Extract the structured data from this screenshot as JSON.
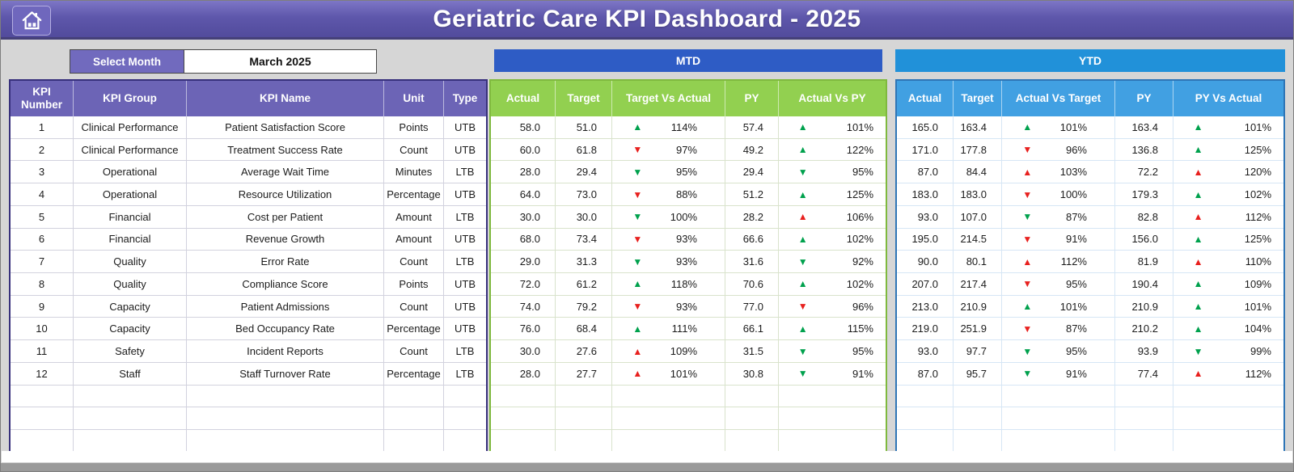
{
  "titlebar": {
    "title": "Geriatric Care KPI Dashboard - 2025"
  },
  "filter": {
    "label": "Select Month",
    "value": "March 2025"
  },
  "sections": {
    "mtd_label": "MTD",
    "ytd_label": "YTD"
  },
  "table": {
    "info_headers": [
      "KPI Number",
      "KPI Group",
      "KPI Name",
      "Unit",
      "Type"
    ],
    "mtd_headers": [
      "Actual",
      "Target",
      "Target Vs Actual",
      "PY",
      "Actual Vs PY"
    ],
    "ytd_headers": [
      "Actual",
      "Target",
      "Actual Vs Target",
      "PY",
      "PY Vs Actual"
    ],
    "empty_rows": 3,
    "rows": [
      {
        "num": "1",
        "group": "Clinical Performance",
        "name": "Patient Satisfaction Score",
        "unit": "Points",
        "type": "UTB",
        "mtd": {
          "actual": "58.0",
          "target": "51.0",
          "tva": {
            "dir": "up",
            "state": "good",
            "pct": "114%"
          },
          "py": "57.4",
          "avp": {
            "dir": "up",
            "state": "good",
            "pct": "101%"
          }
        },
        "ytd": {
          "actual": "165.0",
          "target": "163.4",
          "avt": {
            "dir": "up",
            "state": "good",
            "pct": "101%"
          },
          "py": "163.4",
          "pva": {
            "dir": "up",
            "state": "good",
            "pct": "101%"
          }
        }
      },
      {
        "num": "2",
        "group": "Clinical Performance",
        "name": "Treatment Success Rate",
        "unit": "Count",
        "type": "UTB",
        "mtd": {
          "actual": "60.0",
          "target": "61.8",
          "tva": {
            "dir": "down",
            "state": "bad",
            "pct": "97%"
          },
          "py": "49.2",
          "avp": {
            "dir": "up",
            "state": "good",
            "pct": "122%"
          }
        },
        "ytd": {
          "actual": "171.0",
          "target": "177.8",
          "avt": {
            "dir": "down",
            "state": "bad",
            "pct": "96%"
          },
          "py": "136.8",
          "pva": {
            "dir": "up",
            "state": "good",
            "pct": "125%"
          }
        }
      },
      {
        "num": "3",
        "group": "Operational",
        "name": "Average Wait Time",
        "unit": "Minutes",
        "type": "LTB",
        "mtd": {
          "actual": "28.0",
          "target": "29.4",
          "tva": {
            "dir": "down",
            "state": "good",
            "pct": "95%"
          },
          "py": "29.4",
          "avp": {
            "dir": "down",
            "state": "good",
            "pct": "95%"
          }
        },
        "ytd": {
          "actual": "87.0",
          "target": "84.4",
          "avt": {
            "dir": "up",
            "state": "bad",
            "pct": "103%"
          },
          "py": "72.2",
          "pva": {
            "dir": "up",
            "state": "bad",
            "pct": "120%"
          }
        }
      },
      {
        "num": "4",
        "group": "Operational",
        "name": "Resource Utilization",
        "unit": "Percentage",
        "type": "UTB",
        "mtd": {
          "actual": "64.0",
          "target": "73.0",
          "tva": {
            "dir": "down",
            "state": "bad",
            "pct": "88%"
          },
          "py": "51.2",
          "avp": {
            "dir": "up",
            "state": "good",
            "pct": "125%"
          }
        },
        "ytd": {
          "actual": "183.0",
          "target": "183.0",
          "avt": {
            "dir": "down",
            "state": "bad",
            "pct": "100%"
          },
          "py": "179.3",
          "pva": {
            "dir": "up",
            "state": "good",
            "pct": "102%"
          }
        }
      },
      {
        "num": "5",
        "group": "Financial",
        "name": "Cost per Patient",
        "unit": "Amount",
        "type": "LTB",
        "mtd": {
          "actual": "30.0",
          "target": "30.0",
          "tva": {
            "dir": "down",
            "state": "good",
            "pct": "100%"
          },
          "py": "28.2",
          "avp": {
            "dir": "up",
            "state": "bad",
            "pct": "106%"
          }
        },
        "ytd": {
          "actual": "93.0",
          "target": "107.0",
          "avt": {
            "dir": "down",
            "state": "good",
            "pct": "87%"
          },
          "py": "82.8",
          "pva": {
            "dir": "up",
            "state": "bad",
            "pct": "112%"
          }
        }
      },
      {
        "num": "6",
        "group": "Financial",
        "name": "Revenue Growth",
        "unit": "Amount",
        "type": "UTB",
        "mtd": {
          "actual": "68.0",
          "target": "73.4",
          "tva": {
            "dir": "down",
            "state": "bad",
            "pct": "93%"
          },
          "py": "66.6",
          "avp": {
            "dir": "up",
            "state": "good",
            "pct": "102%"
          }
        },
        "ytd": {
          "actual": "195.0",
          "target": "214.5",
          "avt": {
            "dir": "down",
            "state": "bad",
            "pct": "91%"
          },
          "py": "156.0",
          "pva": {
            "dir": "up",
            "state": "good",
            "pct": "125%"
          }
        }
      },
      {
        "num": "7",
        "group": "Quality",
        "name": "Error Rate",
        "unit": "Count",
        "type": "LTB",
        "mtd": {
          "actual": "29.0",
          "target": "31.3",
          "tva": {
            "dir": "down",
            "state": "good",
            "pct": "93%"
          },
          "py": "31.6",
          "avp": {
            "dir": "down",
            "state": "good",
            "pct": "92%"
          }
        },
        "ytd": {
          "actual": "90.0",
          "target": "80.1",
          "avt": {
            "dir": "up",
            "state": "bad",
            "pct": "112%"
          },
          "py": "81.9",
          "pva": {
            "dir": "up",
            "state": "bad",
            "pct": "110%"
          }
        }
      },
      {
        "num": "8",
        "group": "Quality",
        "name": "Compliance Score",
        "unit": "Points",
        "type": "UTB",
        "mtd": {
          "actual": "72.0",
          "target": "61.2",
          "tva": {
            "dir": "up",
            "state": "good",
            "pct": "118%"
          },
          "py": "70.6",
          "avp": {
            "dir": "up",
            "state": "good",
            "pct": "102%"
          }
        },
        "ytd": {
          "actual": "207.0",
          "target": "217.4",
          "avt": {
            "dir": "down",
            "state": "bad",
            "pct": "95%"
          },
          "py": "190.4",
          "pva": {
            "dir": "up",
            "state": "good",
            "pct": "109%"
          }
        }
      },
      {
        "num": "9",
        "group": "Capacity",
        "name": "Patient Admissions",
        "unit": "Count",
        "type": "UTB",
        "mtd": {
          "actual": "74.0",
          "target": "79.2",
          "tva": {
            "dir": "down",
            "state": "bad",
            "pct": "93%"
          },
          "py": "77.0",
          "avp": {
            "dir": "down",
            "state": "bad",
            "pct": "96%"
          }
        },
        "ytd": {
          "actual": "213.0",
          "target": "210.9",
          "avt": {
            "dir": "up",
            "state": "good",
            "pct": "101%"
          },
          "py": "210.9",
          "pva": {
            "dir": "up",
            "state": "good",
            "pct": "101%"
          }
        }
      },
      {
        "num": "10",
        "group": "Capacity",
        "name": "Bed Occupancy Rate",
        "unit": "Percentage",
        "type": "UTB",
        "mtd": {
          "actual": "76.0",
          "target": "68.4",
          "tva": {
            "dir": "up",
            "state": "good",
            "pct": "111%"
          },
          "py": "66.1",
          "avp": {
            "dir": "up",
            "state": "good",
            "pct": "115%"
          }
        },
        "ytd": {
          "actual": "219.0",
          "target": "251.9",
          "avt": {
            "dir": "down",
            "state": "bad",
            "pct": "87%"
          },
          "py": "210.2",
          "pva": {
            "dir": "up",
            "state": "good",
            "pct": "104%"
          }
        }
      },
      {
        "num": "11",
        "group": "Safety",
        "name": "Incident Reports",
        "unit": "Count",
        "type": "LTB",
        "mtd": {
          "actual": "30.0",
          "target": "27.6",
          "tva": {
            "dir": "up",
            "state": "bad",
            "pct": "109%"
          },
          "py": "31.5",
          "avp": {
            "dir": "down",
            "state": "good",
            "pct": "95%"
          }
        },
        "ytd": {
          "actual": "93.0",
          "target": "97.7",
          "avt": {
            "dir": "down",
            "state": "good",
            "pct": "95%"
          },
          "py": "93.9",
          "pva": {
            "dir": "down",
            "state": "good",
            "pct": "99%"
          }
        }
      },
      {
        "num": "12",
        "group": "Staff",
        "name": "Staff Turnover Rate",
        "unit": "Percentage",
        "type": "LTB",
        "mtd": {
          "actual": "28.0",
          "target": "27.7",
          "tva": {
            "dir": "up",
            "state": "bad",
            "pct": "101%"
          },
          "py": "30.8",
          "avp": {
            "dir": "down",
            "state": "good",
            "pct": "91%"
          }
        },
        "ytd": {
          "actual": "87.0",
          "target": "95.7",
          "avt": {
            "dir": "down",
            "state": "good",
            "pct": "91%"
          },
          "py": "77.4",
          "pva": {
            "dir": "up",
            "state": "bad",
            "pct": "112%"
          }
        }
      }
    ]
  },
  "icons": {
    "up": "▲",
    "down": "▼",
    "home": "home-icon"
  },
  "colors": {
    "background_gray": "#d6d6d6",
    "titlebar_purple": "#5e57ab",
    "panel_purple": "#6c64b6",
    "panel_purple2": "#716abe",
    "info_border_navy": "#37307c",
    "mtd_band_blue": "#2e5cc5",
    "mtd_header_green": "#92d050",
    "mtd_border_green": "#7fb93e",
    "ytd_band_blue": "#2191d9",
    "ytd_header_blue": "#41a0e2",
    "ytd_border_blue": "#2e75b6",
    "good_green": "#00a14d",
    "bad_red": "#e8201e"
  }
}
